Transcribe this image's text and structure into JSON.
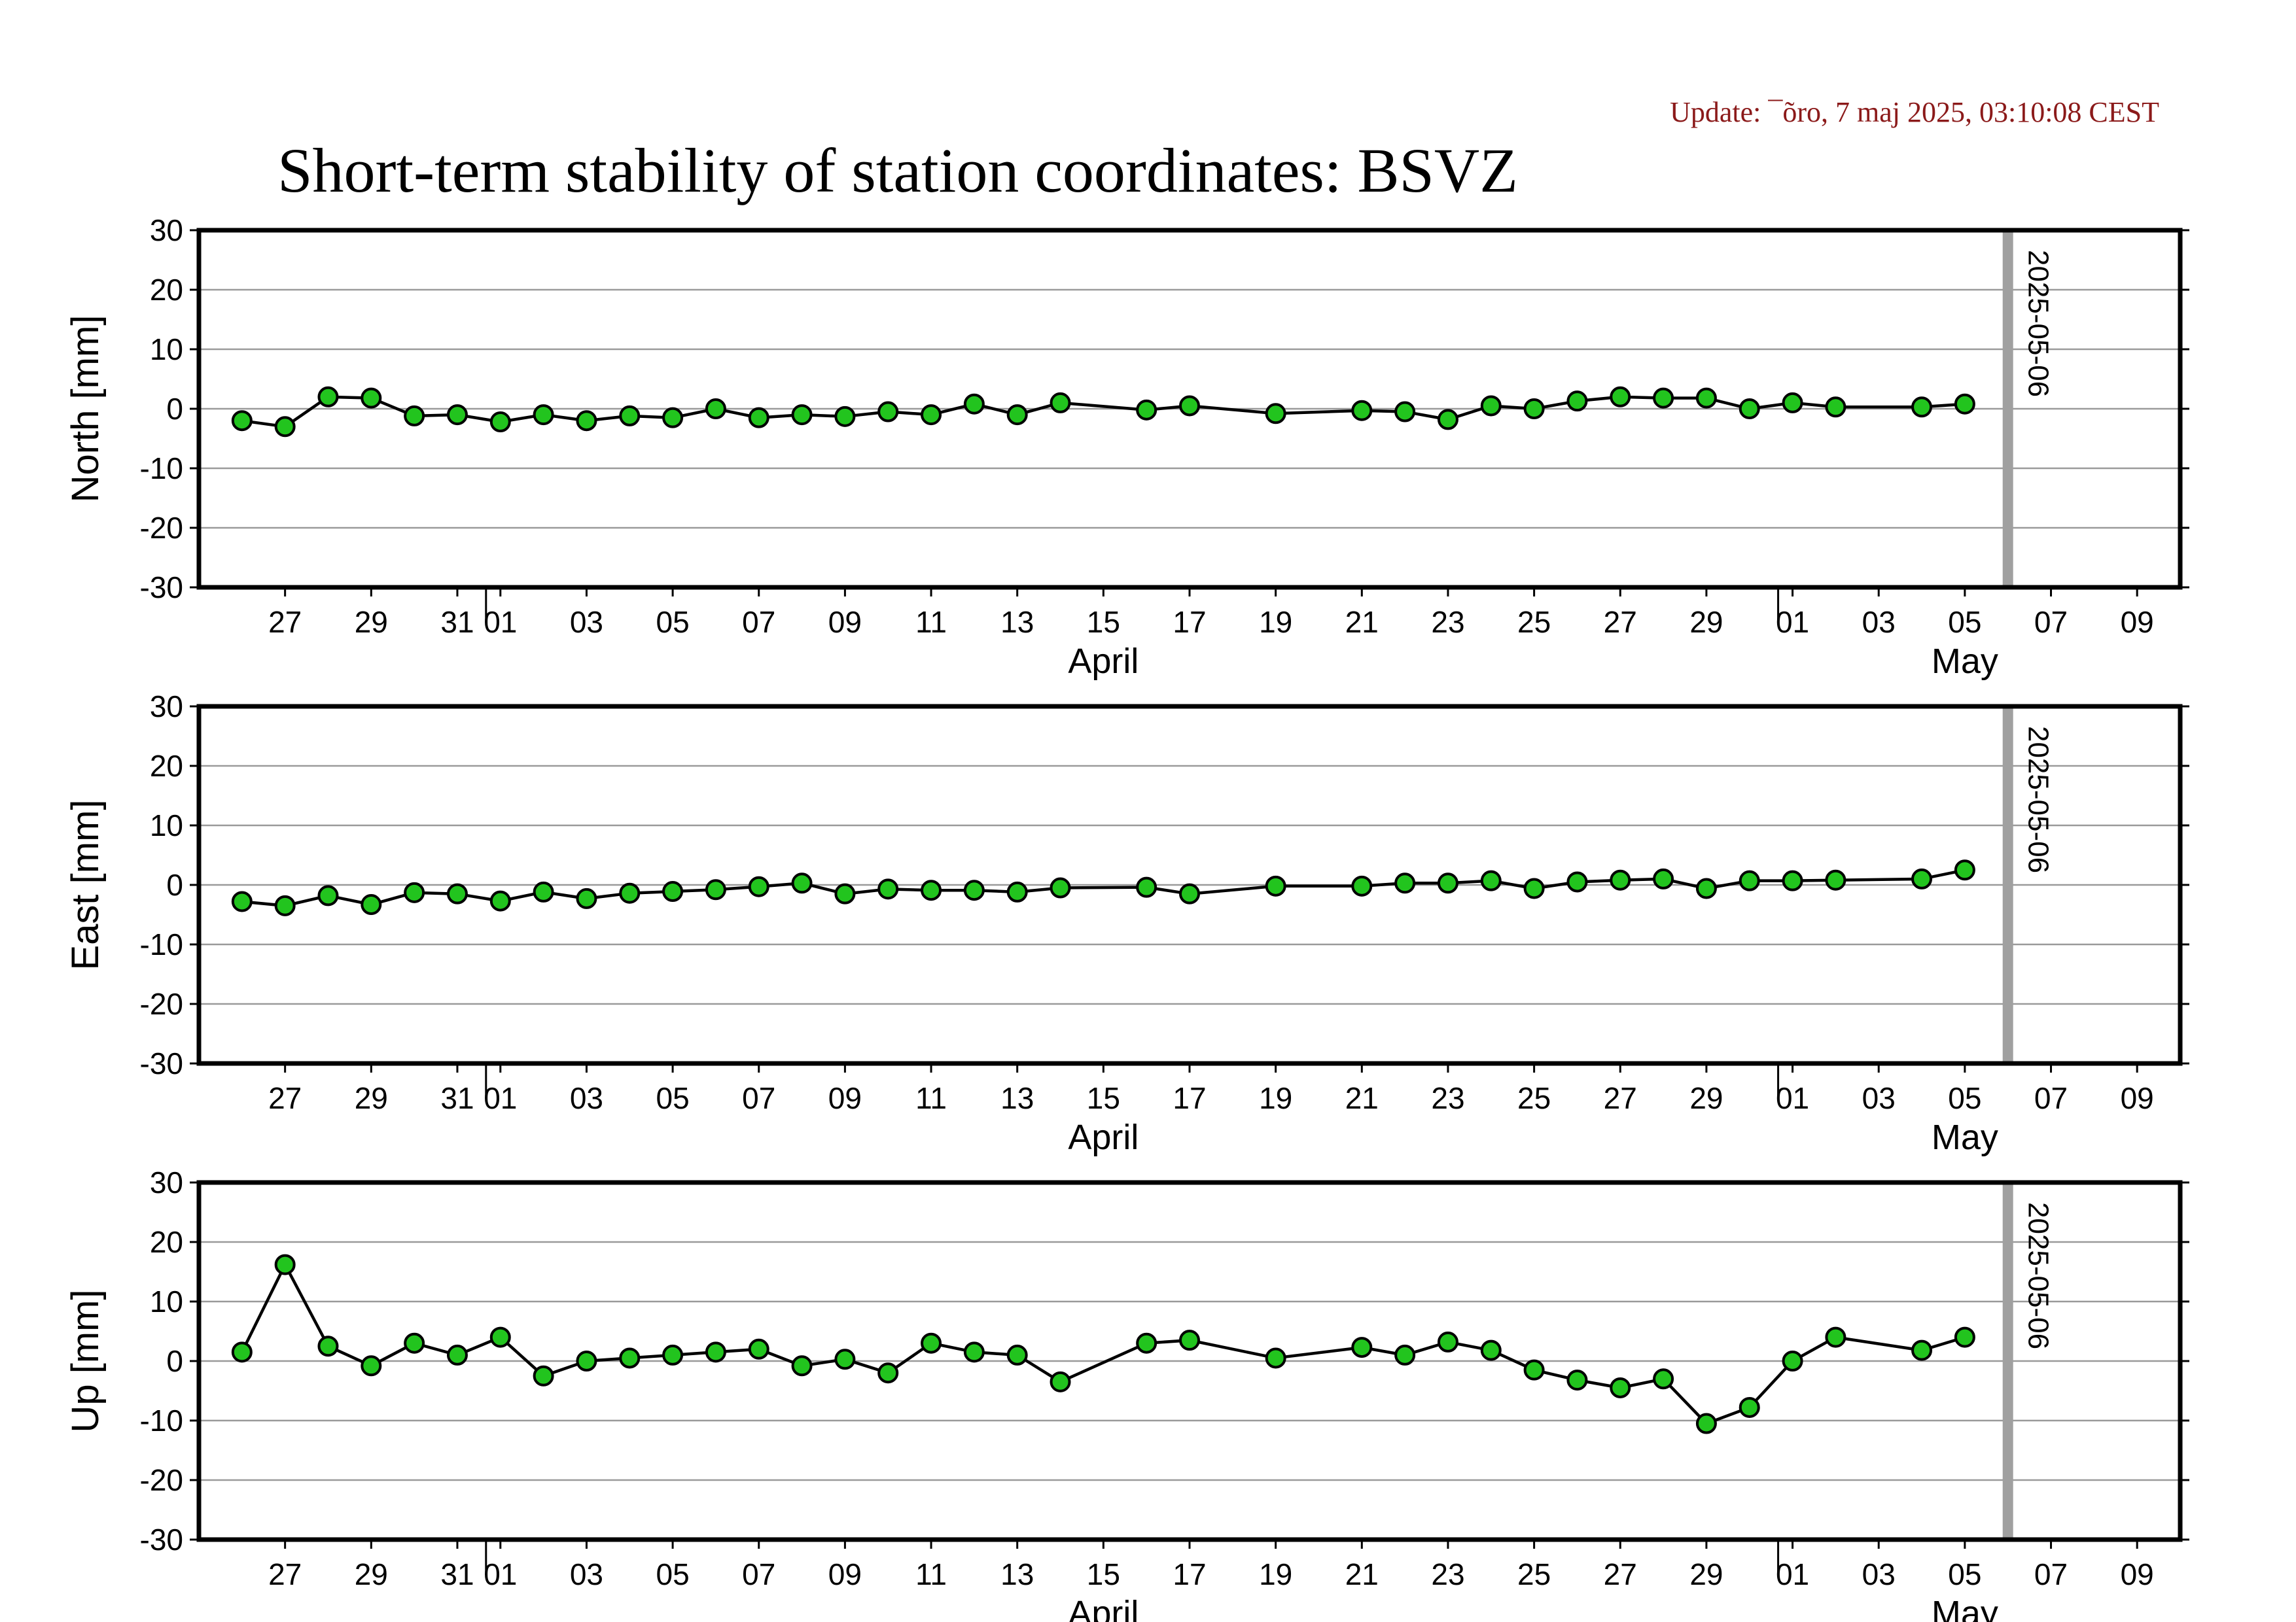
{
  "update_text": "Update: ¯õro, 7 maj 2025, 03:10:08 CEST",
  "title": "Short-term stability of station coordinates: BSVZ",
  "colors": {
    "marker_fill": "#22c41e",
    "marker_stroke": "#000000",
    "line": "#000000",
    "grid": "#9a9a9a",
    "vline": "#a0a0a0",
    "update": "#8b1a1a"
  },
  "chart_data": [
    {
      "type": "line",
      "ylabel": "North [mm]",
      "ylim": [
        -30,
        30
      ],
      "yticks": [
        30,
        20,
        10,
        0,
        -10,
        -20,
        -30
      ],
      "grid": "horizontal",
      "x_range": [
        "2025-03-25",
        "2025-05-10"
      ],
      "x_tick_labels": [
        {
          "date": "2025-03-27",
          "label": "27"
        },
        {
          "date": "2025-03-29",
          "label": "29"
        },
        {
          "date": "2025-03-31",
          "label": "31"
        },
        {
          "date": "2025-04-01",
          "label": "01"
        },
        {
          "date": "2025-04-03",
          "label": "03"
        },
        {
          "date": "2025-04-05",
          "label": "05"
        },
        {
          "date": "2025-04-07",
          "label": "07"
        },
        {
          "date": "2025-04-09",
          "label": "09"
        },
        {
          "date": "2025-04-11",
          "label": "11"
        },
        {
          "date": "2025-04-13",
          "label": "13"
        },
        {
          "date": "2025-04-15",
          "label": "15"
        },
        {
          "date": "2025-04-17",
          "label": "17"
        },
        {
          "date": "2025-04-19",
          "label": "19"
        },
        {
          "date": "2025-04-21",
          "label": "21"
        },
        {
          "date": "2025-04-23",
          "label": "23"
        },
        {
          "date": "2025-04-25",
          "label": "25"
        },
        {
          "date": "2025-04-27",
          "label": "27"
        },
        {
          "date": "2025-04-29",
          "label": "29"
        },
        {
          "date": "2025-05-01",
          "label": "01"
        },
        {
          "date": "2025-05-03",
          "label": "03"
        },
        {
          "date": "2025-05-05",
          "label": "05"
        },
        {
          "date": "2025-05-07",
          "label": "07"
        },
        {
          "date": "2025-05-09",
          "label": "09"
        }
      ],
      "month_labels": [
        {
          "date": "2025-04-15",
          "label": "April"
        },
        {
          "date": "2025-05-05",
          "label": "May"
        }
      ],
      "month_boundaries": [
        "2025-04-01",
        "2025-05-01"
      ],
      "vertical_line": {
        "date": "2025-05-06",
        "label": "2025-05-06"
      },
      "x": [
        "2025-03-26",
        "2025-03-27",
        "2025-03-28",
        "2025-03-29",
        "2025-03-30",
        "2025-03-31",
        "2025-04-01",
        "2025-04-02",
        "2025-04-03",
        "2025-04-04",
        "2025-04-05",
        "2025-04-06",
        "2025-04-07",
        "2025-04-08",
        "2025-04-09",
        "2025-04-10",
        "2025-04-11",
        "2025-04-12",
        "2025-04-13",
        "2025-04-14",
        "2025-04-16",
        "2025-04-17",
        "2025-04-19",
        "2025-04-21",
        "2025-04-22",
        "2025-04-23",
        "2025-04-24",
        "2025-04-25",
        "2025-04-26",
        "2025-04-27",
        "2025-04-28",
        "2025-04-29",
        "2025-04-30",
        "2025-05-01",
        "2025-05-02",
        "2025-05-04",
        "2025-05-05"
      ],
      "values": [
        -2.0,
        -3.0,
        2.0,
        1.8,
        -1.2,
        -1.0,
        -2.2,
        -1.0,
        -2.0,
        -1.2,
        -1.5,
        0.0,
        -1.5,
        -1.0,
        -1.3,
        -0.5,
        -1.0,
        0.8,
        -1.0,
        1.0,
        -0.2,
        0.5,
        -0.8,
        -0.3,
        -0.5,
        -1.8,
        0.5,
        0.0,
        1.3,
        2.0,
        1.8,
        1.8,
        0.0,
        1.0,
        0.3,
        0.3,
        0.8
      ]
    },
    {
      "type": "line",
      "ylabel": "East [mm]",
      "ylim": [
        -30,
        30
      ],
      "yticks": [
        30,
        20,
        10,
        0,
        -10,
        -20,
        -30
      ],
      "grid": "horizontal",
      "x_range": [
        "2025-03-25",
        "2025-05-10"
      ],
      "x_tick_labels": [
        {
          "date": "2025-03-27",
          "label": "27"
        },
        {
          "date": "2025-03-29",
          "label": "29"
        },
        {
          "date": "2025-03-31",
          "label": "31"
        },
        {
          "date": "2025-04-01",
          "label": "01"
        },
        {
          "date": "2025-04-03",
          "label": "03"
        },
        {
          "date": "2025-04-05",
          "label": "05"
        },
        {
          "date": "2025-04-07",
          "label": "07"
        },
        {
          "date": "2025-04-09",
          "label": "09"
        },
        {
          "date": "2025-04-11",
          "label": "11"
        },
        {
          "date": "2025-04-13",
          "label": "13"
        },
        {
          "date": "2025-04-15",
          "label": "15"
        },
        {
          "date": "2025-04-17",
          "label": "17"
        },
        {
          "date": "2025-04-19",
          "label": "19"
        },
        {
          "date": "2025-04-21",
          "label": "21"
        },
        {
          "date": "2025-04-23",
          "label": "23"
        },
        {
          "date": "2025-04-25",
          "label": "25"
        },
        {
          "date": "2025-04-27",
          "label": "27"
        },
        {
          "date": "2025-04-29",
          "label": "29"
        },
        {
          "date": "2025-05-01",
          "label": "01"
        },
        {
          "date": "2025-05-03",
          "label": "03"
        },
        {
          "date": "2025-05-05",
          "label": "05"
        },
        {
          "date": "2025-05-07",
          "label": "07"
        },
        {
          "date": "2025-05-09",
          "label": "09"
        }
      ],
      "month_labels": [
        {
          "date": "2025-04-15",
          "label": "April"
        },
        {
          "date": "2025-05-05",
          "label": "May"
        }
      ],
      "month_boundaries": [
        "2025-04-01",
        "2025-05-01"
      ],
      "vertical_line": {
        "date": "2025-05-06",
        "label": "2025-05-06"
      },
      "x": [
        "2025-03-26",
        "2025-03-27",
        "2025-03-28",
        "2025-03-29",
        "2025-03-30",
        "2025-03-31",
        "2025-04-01",
        "2025-04-02",
        "2025-04-03",
        "2025-04-04",
        "2025-04-05",
        "2025-04-06",
        "2025-04-07",
        "2025-04-08",
        "2025-04-09",
        "2025-04-10",
        "2025-04-11",
        "2025-04-12",
        "2025-04-13",
        "2025-04-14",
        "2025-04-16",
        "2025-04-17",
        "2025-04-19",
        "2025-04-21",
        "2025-04-22",
        "2025-04-23",
        "2025-04-24",
        "2025-04-25",
        "2025-04-26",
        "2025-04-27",
        "2025-04-28",
        "2025-04-29",
        "2025-04-30",
        "2025-05-01",
        "2025-05-02",
        "2025-05-04",
        "2025-05-05"
      ],
      "values": [
        -2.8,
        -3.5,
        -1.8,
        -3.3,
        -1.3,
        -1.5,
        -2.7,
        -1.2,
        -2.3,
        -1.4,
        -1.1,
        -0.8,
        -0.3,
        0.3,
        -1.5,
        -0.7,
        -0.9,
        -0.9,
        -1.2,
        -0.5,
        -0.4,
        -1.5,
        -0.2,
        -0.2,
        0.3,
        0.3,
        0.7,
        -0.6,
        0.5,
        0.8,
        1.0,
        -0.6,
        0.7,
        0.7,
        0.8,
        1.0,
        2.5
      ]
    },
    {
      "type": "line",
      "ylabel": "Up [mm]",
      "ylim": [
        -30,
        30
      ],
      "yticks": [
        30,
        20,
        10,
        0,
        -10,
        -20,
        -30
      ],
      "grid": "horizontal",
      "x_range": [
        "2025-03-25",
        "2025-05-10"
      ],
      "x_tick_labels": [
        {
          "date": "2025-03-27",
          "label": "27"
        },
        {
          "date": "2025-03-29",
          "label": "29"
        },
        {
          "date": "2025-03-31",
          "label": "31"
        },
        {
          "date": "2025-04-01",
          "label": "01"
        },
        {
          "date": "2025-04-03",
          "label": "03"
        },
        {
          "date": "2025-04-05",
          "label": "05"
        },
        {
          "date": "2025-04-07",
          "label": "07"
        },
        {
          "date": "2025-04-09",
          "label": "09"
        },
        {
          "date": "2025-04-11",
          "label": "11"
        },
        {
          "date": "2025-04-13",
          "label": "13"
        },
        {
          "date": "2025-04-15",
          "label": "15"
        },
        {
          "date": "2025-04-17",
          "label": "17"
        },
        {
          "date": "2025-04-19",
          "label": "19"
        },
        {
          "date": "2025-04-21",
          "label": "21"
        },
        {
          "date": "2025-04-23",
          "label": "23"
        },
        {
          "date": "2025-04-25",
          "label": "25"
        },
        {
          "date": "2025-04-27",
          "label": "27"
        },
        {
          "date": "2025-04-29",
          "label": "29"
        },
        {
          "date": "2025-05-01",
          "label": "01"
        },
        {
          "date": "2025-05-03",
          "label": "03"
        },
        {
          "date": "2025-05-05",
          "label": "05"
        },
        {
          "date": "2025-05-07",
          "label": "07"
        },
        {
          "date": "2025-05-09",
          "label": "09"
        }
      ],
      "month_labels": [
        {
          "date": "2025-04-15",
          "label": "April"
        },
        {
          "date": "2025-05-05",
          "label": "May"
        }
      ],
      "month_boundaries": [
        "2025-04-01",
        "2025-05-01"
      ],
      "vertical_line": {
        "date": "2025-05-06",
        "label": "2025-05-06"
      },
      "x": [
        "2025-03-26",
        "2025-03-27",
        "2025-03-28",
        "2025-03-29",
        "2025-03-30",
        "2025-03-31",
        "2025-04-01",
        "2025-04-02",
        "2025-04-03",
        "2025-04-04",
        "2025-04-05",
        "2025-04-06",
        "2025-04-07",
        "2025-04-08",
        "2025-04-09",
        "2025-04-10",
        "2025-04-11",
        "2025-04-12",
        "2025-04-13",
        "2025-04-14",
        "2025-04-16",
        "2025-04-17",
        "2025-04-19",
        "2025-04-21",
        "2025-04-22",
        "2025-04-23",
        "2025-04-24",
        "2025-04-25",
        "2025-04-26",
        "2025-04-27",
        "2025-04-28",
        "2025-04-29",
        "2025-04-30",
        "2025-05-01",
        "2025-05-02",
        "2025-05-04",
        "2025-05-05"
      ],
      "values": [
        1.5,
        16.2,
        2.5,
        -0.8,
        3.0,
        1.0,
        4.0,
        -2.5,
        0.0,
        0.5,
        1.0,
        1.5,
        2.0,
        -0.8,
        0.3,
        -2.0,
        3.0,
        1.5,
        1.0,
        -3.5,
        3.0,
        3.5,
        0.5,
        2.3,
        1.0,
        3.2,
        1.8,
        -1.5,
        -3.2,
        -4.5,
        -3.0,
        -10.5,
        -7.8,
        0.0,
        4.0,
        1.8,
        4.0
      ]
    }
  ]
}
